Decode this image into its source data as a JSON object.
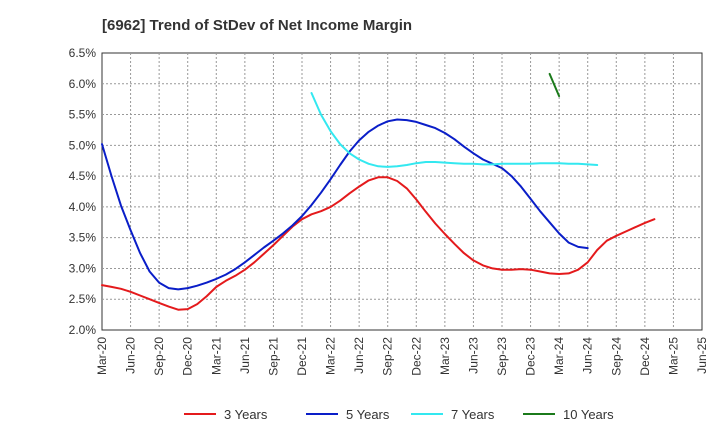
{
  "chart_data": {
    "type": "line",
    "title": "[6962]  Trend of StDev of Net Income Margin",
    "xlabel": "",
    "ylabel": "",
    "x_ticks": [
      "Mar-20",
      "Jun-20",
      "Sep-20",
      "Dec-20",
      "Mar-21",
      "Jun-21",
      "Sep-21",
      "Dec-21",
      "Mar-22",
      "Jun-22",
      "Sep-22",
      "Dec-22",
      "Mar-23",
      "Jun-23",
      "Sep-23",
      "Dec-23",
      "Mar-24",
      "Jun-24",
      "Sep-24",
      "Dec-24",
      "Mar-25",
      "Jun-25"
    ],
    "y_ticks": [
      "2.0%",
      "2.5%",
      "3.0%",
      "3.5%",
      "4.0%",
      "4.5%",
      "5.0%",
      "5.5%",
      "6.0%",
      "6.5%"
    ],
    "ylim": [
      2.0,
      6.5
    ],
    "grid": true,
    "legend_position": "bottom",
    "series": [
      {
        "name": "3 Years",
        "color": "#e41a1c",
        "points": [
          [
            "Mar-20",
            2.73
          ],
          [
            "Apr-20",
            2.7
          ],
          [
            "May-20",
            2.67
          ],
          [
            "Jun-20",
            2.62
          ],
          [
            "Jul-20",
            2.56
          ],
          [
            "Aug-20",
            2.5
          ],
          [
            "Sep-20",
            2.44
          ],
          [
            "Oct-20",
            2.38
          ],
          [
            "Nov-20",
            2.33
          ],
          [
            "Dec-20",
            2.34
          ],
          [
            "Jan-21",
            2.42
          ],
          [
            "Feb-21",
            2.55
          ],
          [
            "Mar-21",
            2.7
          ],
          [
            "Apr-21",
            2.8
          ],
          [
            "May-21",
            2.88
          ],
          [
            "Jun-21",
            2.98
          ],
          [
            "Jul-21",
            3.1
          ],
          [
            "Aug-21",
            3.24
          ],
          [
            "Sep-21",
            3.38
          ],
          [
            "Oct-21",
            3.53
          ],
          [
            "Nov-21",
            3.68
          ],
          [
            "Dec-21",
            3.8
          ],
          [
            "Jan-22",
            3.88
          ],
          [
            "Feb-22",
            3.93
          ],
          [
            "Mar-22",
            4.0
          ],
          [
            "Apr-22",
            4.1
          ],
          [
            "May-22",
            4.22
          ],
          [
            "Jun-22",
            4.33
          ],
          [
            "Jul-22",
            4.43
          ],
          [
            "Aug-22",
            4.48
          ],
          [
            "Sep-22",
            4.48
          ],
          [
            "Oct-22",
            4.42
          ],
          [
            "Nov-22",
            4.3
          ],
          [
            "Dec-22",
            4.12
          ],
          [
            "Jan-23",
            3.92
          ],
          [
            "Feb-23",
            3.73
          ],
          [
            "Mar-23",
            3.56
          ],
          [
            "Apr-23",
            3.4
          ],
          [
            "May-23",
            3.25
          ],
          [
            "Jun-23",
            3.13
          ],
          [
            "Jul-23",
            3.05
          ],
          [
            "Aug-23",
            3.0
          ],
          [
            "Sep-23",
            2.98
          ],
          [
            "Oct-23",
            2.98
          ],
          [
            "Nov-23",
            2.99
          ],
          [
            "Dec-23",
            2.98
          ],
          [
            "Jan-24",
            2.95
          ],
          [
            "Feb-24",
            2.92
          ],
          [
            "Mar-24",
            2.91
          ],
          [
            "Apr-24",
            2.92
          ],
          [
            "May-24",
            2.98
          ],
          [
            "Jun-24",
            3.1
          ],
          [
            "Jul-24",
            3.3
          ],
          [
            "Aug-24",
            3.45
          ],
          [
            "Sep-24",
            3.53
          ],
          [
            "Oct-24",
            3.6
          ],
          [
            "Nov-24",
            3.67
          ],
          [
            "Dec-24",
            3.74
          ],
          [
            "Jan-25",
            3.8
          ]
        ]
      },
      {
        "name": "5 Years",
        "color": "#0a1ec8",
        "points": [
          [
            "Mar-20",
            5.02
          ],
          [
            "Apr-20",
            4.5
          ],
          [
            "May-20",
            4.02
          ],
          [
            "Jun-20",
            3.62
          ],
          [
            "Jul-20",
            3.25
          ],
          [
            "Aug-20",
            2.95
          ],
          [
            "Sep-20",
            2.77
          ],
          [
            "Oct-20",
            2.68
          ],
          [
            "Nov-20",
            2.66
          ],
          [
            "Dec-20",
            2.68
          ],
          [
            "Jan-21",
            2.72
          ],
          [
            "Feb-21",
            2.77
          ],
          [
            "Mar-21",
            2.83
          ],
          [
            "Apr-21",
            2.9
          ],
          [
            "May-21",
            2.99
          ],
          [
            "Jun-21",
            3.1
          ],
          [
            "Jul-21",
            3.22
          ],
          [
            "Aug-21",
            3.34
          ],
          [
            "Sep-21",
            3.45
          ],
          [
            "Oct-21",
            3.57
          ],
          [
            "Nov-21",
            3.7
          ],
          [
            "Dec-21",
            3.85
          ],
          [
            "Jan-22",
            4.03
          ],
          [
            "Feb-22",
            4.23
          ],
          [
            "Mar-22",
            4.45
          ],
          [
            "Apr-22",
            4.68
          ],
          [
            "May-22",
            4.9
          ],
          [
            "Jun-22",
            5.08
          ],
          [
            "Jul-22",
            5.22
          ],
          [
            "Aug-22",
            5.32
          ],
          [
            "Sep-22",
            5.39
          ],
          [
            "Oct-22",
            5.42
          ],
          [
            "Nov-22",
            5.41
          ],
          [
            "Dec-22",
            5.38
          ],
          [
            "Jan-23",
            5.33
          ],
          [
            "Feb-23",
            5.28
          ],
          [
            "Mar-23",
            5.2
          ],
          [
            "Apr-23",
            5.1
          ],
          [
            "May-23",
            4.98
          ],
          [
            "Jun-23",
            4.87
          ],
          [
            "Jul-23",
            4.77
          ],
          [
            "Aug-23",
            4.7
          ],
          [
            "Sep-23",
            4.63
          ],
          [
            "Oct-23",
            4.5
          ],
          [
            "Nov-23",
            4.33
          ],
          [
            "Dec-23",
            4.13
          ],
          [
            "Jan-24",
            3.93
          ],
          [
            "Feb-24",
            3.75
          ],
          [
            "Mar-24",
            3.57
          ],
          [
            "Apr-24",
            3.42
          ],
          [
            "May-24",
            3.35
          ],
          [
            "Jun-24",
            3.33
          ]
        ]
      },
      {
        "name": "7 Years",
        "color": "#33e8f0",
        "points": [
          [
            "Jan-22",
            5.85
          ],
          [
            "Feb-22",
            5.5
          ],
          [
            "Mar-22",
            5.23
          ],
          [
            "Apr-22",
            5.02
          ],
          [
            "May-22",
            4.87
          ],
          [
            "Jun-22",
            4.77
          ],
          [
            "Jul-22",
            4.7
          ],
          [
            "Aug-22",
            4.66
          ],
          [
            "Sep-22",
            4.65
          ],
          [
            "Oct-22",
            4.66
          ],
          [
            "Nov-22",
            4.68
          ],
          [
            "Dec-22",
            4.71
          ],
          [
            "Jan-23",
            4.73
          ],
          [
            "Feb-23",
            4.73
          ],
          [
            "Mar-23",
            4.72
          ],
          [
            "Apr-23",
            4.71
          ],
          [
            "May-23",
            4.7
          ],
          [
            "Jun-23",
            4.7
          ],
          [
            "Jul-23",
            4.69
          ],
          [
            "Aug-23",
            4.69
          ],
          [
            "Sep-23",
            4.7
          ],
          [
            "Oct-23",
            4.7
          ],
          [
            "Nov-23",
            4.7
          ],
          [
            "Dec-23",
            4.7
          ],
          [
            "Jan-24",
            4.71
          ],
          [
            "Feb-24",
            4.71
          ],
          [
            "Mar-24",
            4.71
          ],
          [
            "Apr-24",
            4.7
          ],
          [
            "May-24",
            4.7
          ],
          [
            "Jun-24",
            4.69
          ],
          [
            "Jul-24",
            4.68
          ]
        ]
      },
      {
        "name": "10 Years",
        "color": "#1b7a1b",
        "points": [
          [
            "Feb-24",
            6.16
          ],
          [
            "Mar-24",
            5.8
          ]
        ]
      }
    ]
  }
}
